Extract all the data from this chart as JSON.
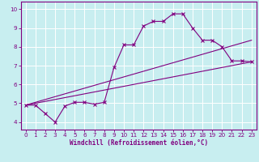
{
  "xlabel": "Windchill (Refroidissement éolien,°C)",
  "bg_color": "#c8eef0",
  "line_color": "#800080",
  "grid_color": "#ffffff",
  "xlim": [
    -0.5,
    23.5
  ],
  "ylim": [
    3.6,
    10.4
  ],
  "xticks": [
    0,
    1,
    2,
    3,
    4,
    5,
    6,
    7,
    8,
    9,
    10,
    11,
    12,
    13,
    14,
    15,
    16,
    17,
    18,
    19,
    20,
    21,
    22,
    23
  ],
  "yticks": [
    4,
    5,
    6,
    7,
    8,
    9,
    10
  ],
  "curve1_x": [
    0,
    1,
    2,
    3,
    4,
    5,
    6,
    7,
    8,
    9,
    10,
    11,
    12,
    13,
    14,
    15,
    16,
    17,
    18,
    19,
    20,
    21,
    22,
    23
  ],
  "curve1_y": [
    4.9,
    4.9,
    4.45,
    4.0,
    4.85,
    5.05,
    5.05,
    4.95,
    5.05,
    6.9,
    8.1,
    8.1,
    9.1,
    9.35,
    9.35,
    9.75,
    9.75,
    9.0,
    8.35,
    8.35,
    8.0,
    7.25,
    7.25,
    7.2
  ],
  "line2_x": [
    0,
    23
  ],
  "line2_y": [
    4.9,
    8.35
  ],
  "line3_x": [
    0,
    23
  ],
  "line3_y": [
    4.9,
    7.2
  ],
  "xlabel_fontsize": 5.5,
  "tick_fontsize": 5.2
}
